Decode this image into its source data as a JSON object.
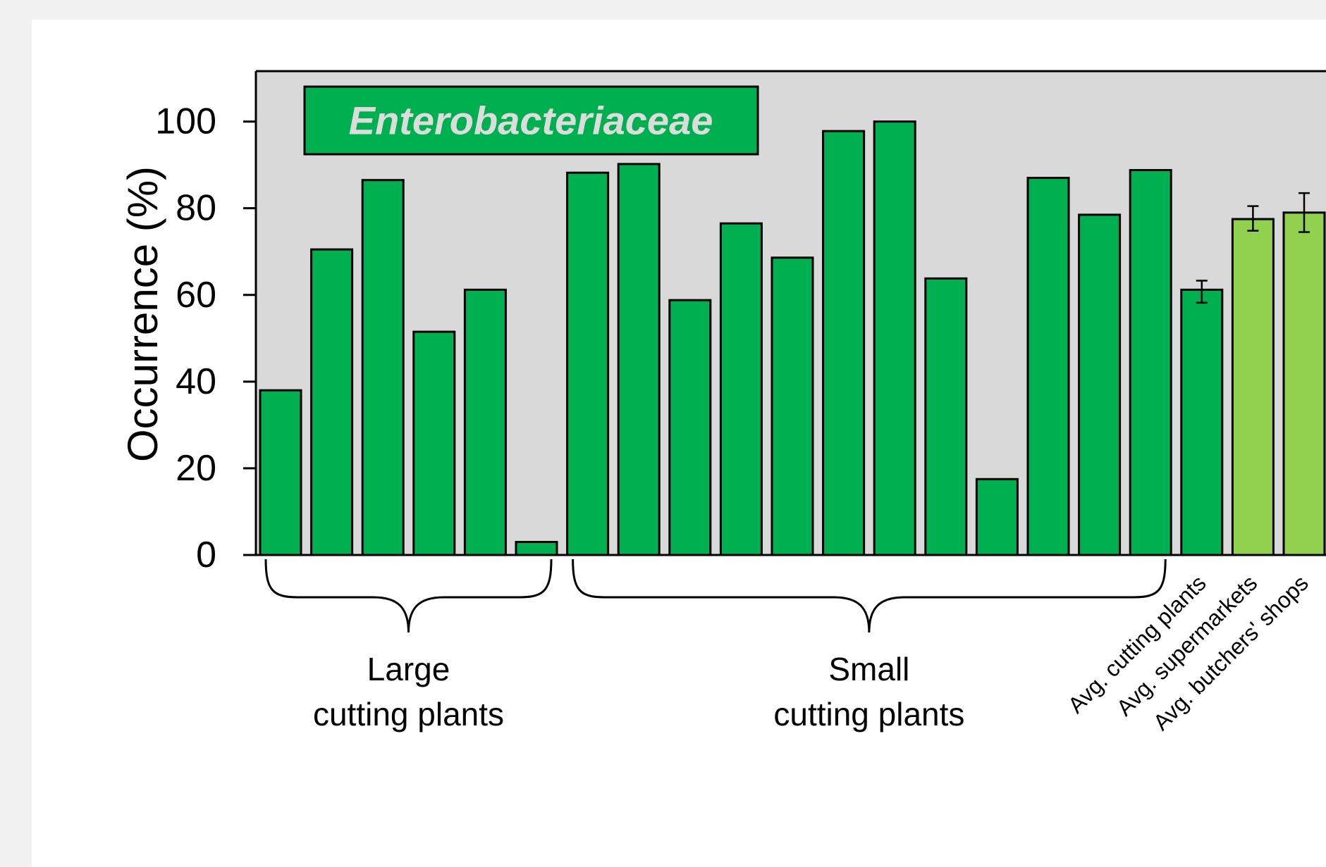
{
  "chart_data": {
    "type": "bar",
    "title": "Enterobacteriaceae",
    "ylabel": "Occurrence (%)",
    "ylim": [
      0,
      110
    ],
    "yticks": [
      0,
      20,
      40,
      60,
      80,
      100
    ],
    "grid": false,
    "colors": {
      "plant_bar": "#00b050",
      "average_light_bar": "#92d050",
      "plot_background": "#d9d9d9",
      "badge_fill": "#00b050",
      "badge_text": "#dcdcdc"
    },
    "series": [
      {
        "values": [
          38,
          70.5,
          86.5,
          51.5,
          61.2,
          3,
          88.2,
          90.2,
          58.8,
          76.5,
          68.6,
          97.8,
          100,
          63.8,
          17.5,
          87,
          78.5,
          88.8,
          61.2,
          77.5,
          79
        ]
      }
    ],
    "bar_color_keys": [
      "plant_bar",
      "plant_bar",
      "plant_bar",
      "plant_bar",
      "plant_bar",
      "plant_bar",
      "plant_bar",
      "plant_bar",
      "plant_bar",
      "plant_bar",
      "plant_bar",
      "plant_bar",
      "plant_bar",
      "plant_bar",
      "plant_bar",
      "plant_bar",
      "plant_bar",
      "plant_bar",
      "plant_bar",
      "average_light_bar",
      "average_light_bar"
    ],
    "error_bars": [
      {
        "index": 18,
        "low": 58.2,
        "high": 63.3
      },
      {
        "index": 19,
        "low": 74.8,
        "high": 80.5
      },
      {
        "index": 20,
        "low": 74.5,
        "high": 83.5
      }
    ],
    "groups": [
      {
        "label_line1": "Large",
        "label_line2": "cutting plants",
        "start": 0,
        "end": 5
      },
      {
        "label_line1": "Small",
        "label_line2": "cutting plants",
        "start": 6,
        "end": 17
      }
    ],
    "average_labels": [
      {
        "index": 18,
        "label": "Avg. cutting plants"
      },
      {
        "index": 19,
        "label": "Avg. supermarkets"
      },
      {
        "index": 20,
        "label": "Avg. butchers' shops"
      }
    ]
  }
}
